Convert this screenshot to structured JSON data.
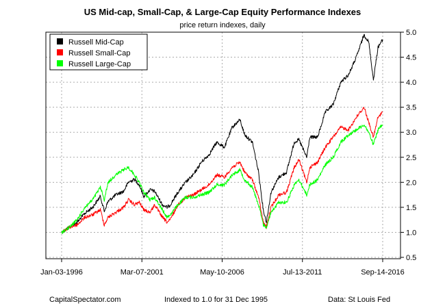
{
  "chart_data": {
    "type": "line",
    "title": "US Mid-cap, Small-Cap, & Large-Cap Equity Performance Indexes",
    "subtitle": "price return indexes, daily",
    "ylim": [
      0.5,
      5.0
    ],
    "y_ticks": [
      "0.5",
      "1.0",
      "1.5",
      "2.0",
      "2.5",
      "3.0",
      "3.5",
      "4.0",
      "4.5",
      "5.0"
    ],
    "x_tick_labels": [
      "Jan-03-1996",
      "Mar-07-2001",
      "May-10-2006",
      "Jul-13-2011",
      "Sep-14-2016"
    ],
    "x_range": [
      1996.0,
      2016.7
    ],
    "grid": true,
    "legend_position": "top-left",
    "series": [
      {
        "name": "Russell Mid-Cap",
        "color": "#000000",
        "x": [
          1996.0,
          1996.5,
          1997.0,
          1997.5,
          1998.0,
          1998.5,
          1998.75,
          1999.0,
          1999.5,
          2000.0,
          2000.3,
          2000.7,
          2001.0,
          2001.3,
          2001.7,
          2002.0,
          2002.5,
          2002.8,
          2003.0,
          2003.5,
          2004.0,
          2004.5,
          2005.0,
          2005.5,
          2006.0,
          2006.5,
          2007.0,
          2007.5,
          2007.8,
          2008.3,
          2008.7,
          2009.0,
          2009.2,
          2009.5,
          2010.0,
          2010.5,
          2011.0,
          2011.3,
          2011.8,
          2012.0,
          2012.5,
          2013.0,
          2013.5,
          2014.0,
          2014.5,
          2015.0,
          2015.5,
          2015.8,
          2016.1,
          2016.4,
          2016.7
        ],
        "values": [
          1.0,
          1.1,
          1.2,
          1.38,
          1.5,
          1.72,
          1.42,
          1.62,
          1.75,
          1.82,
          2.0,
          2.06,
          1.95,
          1.72,
          1.85,
          1.82,
          1.55,
          1.5,
          1.55,
          1.8,
          2.0,
          2.15,
          2.4,
          2.55,
          2.8,
          2.7,
          3.1,
          3.25,
          2.95,
          2.8,
          2.2,
          1.45,
          1.2,
          1.8,
          2.1,
          2.2,
          2.8,
          2.85,
          2.5,
          2.9,
          2.9,
          3.4,
          3.55,
          4.0,
          4.15,
          4.5,
          4.95,
          4.8,
          4.05,
          4.7,
          4.85
        ]
      },
      {
        "name": "Russell Small-Cap",
        "color": "#ff0000",
        "x": [
          1996.0,
          1996.5,
          1997.0,
          1997.5,
          1998.0,
          1998.5,
          1998.75,
          1999.0,
          1999.5,
          2000.0,
          2000.3,
          2000.7,
          2001.0,
          2001.3,
          2001.7,
          2002.0,
          2002.5,
          2002.8,
          2003.0,
          2003.5,
          2004.0,
          2004.5,
          2005.0,
          2005.5,
          2006.0,
          2006.5,
          2007.0,
          2007.5,
          2007.8,
          2008.3,
          2008.7,
          2009.0,
          2009.2,
          2009.5,
          2010.0,
          2010.5,
          2011.0,
          2011.3,
          2011.8,
          2012.0,
          2012.5,
          2013.0,
          2013.5,
          2014.0,
          2014.5,
          2015.0,
          2015.5,
          2015.8,
          2016.1,
          2016.4,
          2016.7
        ],
        "values": [
          1.0,
          1.1,
          1.15,
          1.3,
          1.35,
          1.45,
          1.15,
          1.3,
          1.4,
          1.5,
          1.65,
          1.55,
          1.6,
          1.45,
          1.4,
          1.55,
          1.3,
          1.2,
          1.25,
          1.55,
          1.7,
          1.75,
          1.85,
          1.95,
          2.15,
          2.1,
          2.3,
          2.4,
          2.2,
          2.05,
          1.7,
          1.2,
          1.1,
          1.5,
          1.75,
          1.8,
          2.3,
          2.45,
          2.0,
          2.3,
          2.4,
          2.7,
          2.9,
          3.1,
          3.05,
          3.3,
          3.5,
          3.2,
          2.9,
          3.3,
          3.4
        ]
      },
      {
        "name": "Russell Large-Cap",
        "color": "#00ff00",
        "x": [
          1996.0,
          1996.5,
          1997.0,
          1997.5,
          1998.0,
          1998.5,
          1998.75,
          1999.0,
          1999.5,
          2000.0,
          2000.3,
          2000.7,
          2001.0,
          2001.3,
          2001.7,
          2002.0,
          2002.5,
          2002.8,
          2003.0,
          2003.5,
          2004.0,
          2004.5,
          2005.0,
          2005.5,
          2006.0,
          2006.5,
          2007.0,
          2007.5,
          2007.8,
          2008.3,
          2008.7,
          2009.0,
          2009.2,
          2009.5,
          2010.0,
          2010.5,
          2011.0,
          2011.3,
          2011.8,
          2012.0,
          2012.5,
          2013.0,
          2013.5,
          2014.0,
          2014.5,
          2015.0,
          2015.5,
          2015.8,
          2016.1,
          2016.4,
          2016.7
        ],
        "values": [
          1.0,
          1.1,
          1.25,
          1.5,
          1.65,
          1.9,
          1.65,
          2.0,
          2.15,
          2.25,
          2.3,
          2.15,
          2.0,
          1.8,
          1.65,
          1.7,
          1.45,
          1.3,
          1.35,
          1.55,
          1.7,
          1.7,
          1.75,
          1.8,
          1.95,
          1.95,
          2.15,
          2.25,
          2.05,
          1.9,
          1.55,
          1.15,
          1.1,
          1.4,
          1.6,
          1.6,
          1.95,
          2.05,
          1.75,
          1.95,
          2.05,
          2.35,
          2.5,
          2.8,
          2.95,
          3.05,
          3.15,
          3.0,
          2.75,
          3.05,
          3.15
        ]
      }
    ]
  },
  "footer": {
    "left": "CapitalSpectator.com",
    "center": "Indexed to 1.0 for 31 Dec 1995",
    "right": "Data: St Louis Fed"
  }
}
